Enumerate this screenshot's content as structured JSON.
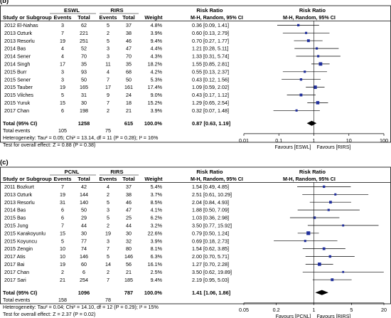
{
  "chart_data": [
    {
      "type": "forest",
      "panel_label": "(b)",
      "group_headers": [
        "ESWL",
        "RIRS"
      ],
      "columns": [
        "Study or Subgroup",
        "Events",
        "Total",
        "Events",
        "Total",
        "Weight",
        "Risk Ratio",
        "Risk Ratio"
      ],
      "ratio_subheaders": [
        "M-H, Random, 95% CI",
        "M-H, Random, 95% CI"
      ],
      "studies": [
        {
          "name": "2012 El-Nahas",
          "e1": "3",
          "t1": "62",
          "e2": "5",
          "t2": "37",
          "weight": "4.8%",
          "ci_text": "0.36 [0.09, 1.41]",
          "rr": 0.36,
          "lo": 0.09,
          "hi": 1.41
        },
        {
          "name": "2013 Ozturk",
          "e1": "7",
          "t1": "221",
          "e2": "2",
          "t2": "38",
          "weight": "3.9%",
          "ci_text": "0.60 [0.13, 2.79]",
          "rr": 0.6,
          "lo": 0.13,
          "hi": 2.79
        },
        {
          "name": "2013 Resorlu",
          "e1": "19",
          "t1": "251",
          "e2": "5",
          "t2": "46",
          "weight": "9.4%",
          "ci_text": "0.70 [0.27, 1.77]",
          "rr": 0.7,
          "lo": 0.27,
          "hi": 1.77
        },
        {
          "name": "2014 Bas",
          "e1": "4",
          "t1": "52",
          "e2": "3",
          "t2": "47",
          "weight": "4.4%",
          "ci_text": "1.21 [0.28, 5.11]",
          "rr": 1.21,
          "lo": 0.28,
          "hi": 5.11
        },
        {
          "name": "2014 Sener",
          "e1": "4",
          "t1": "70",
          "e2": "3",
          "t2": "70",
          "weight": "4.3%",
          "ci_text": "1.33 [0.31, 5.74]",
          "rr": 1.33,
          "lo": 0.31,
          "hi": 5.74
        },
        {
          "name": "2014 Singh",
          "e1": "17",
          "t1": "35",
          "e2": "11",
          "t2": "35",
          "weight": "18.2%",
          "ci_text": "1.55 [0.85, 2.81]",
          "rr": 1.55,
          "lo": 0.85,
          "hi": 2.81
        },
        {
          "name": "2015 Burr",
          "e1": "3",
          "t1": "93",
          "e2": "4",
          "t2": "68",
          "weight": "4.2%",
          "ci_text": "0.55 [0.13, 2.37]",
          "rr": 0.55,
          "lo": 0.13,
          "hi": 2.37
        },
        {
          "name": "2015 Sener",
          "e1": "3",
          "t1": "50",
          "e2": "7",
          "t2": "50",
          "weight": "5.3%",
          "ci_text": "0.43 [0.12, 1.56]",
          "rr": 0.43,
          "lo": 0.12,
          "hi": 1.56
        },
        {
          "name": "2015 Tauber",
          "e1": "19",
          "t1": "165",
          "e2": "17",
          "t2": "161",
          "weight": "17.4%",
          "ci_text": "1.09 [0.59, 2.02]",
          "rr": 1.09,
          "lo": 0.59,
          "hi": 2.02
        },
        {
          "name": "2015 Vilches",
          "e1": "5",
          "t1": "31",
          "e2": "9",
          "t2": "24",
          "weight": "9.0%",
          "ci_text": "0.43 [0.17, 1.12]",
          "rr": 0.43,
          "lo": 0.17,
          "hi": 1.12
        },
        {
          "name": "2015 Yuruk",
          "e1": "15",
          "t1": "30",
          "e2": "7",
          "t2": "18",
          "weight": "15.2%",
          "ci_text": "1.29 [0.65, 2.54]",
          "rr": 1.29,
          "lo": 0.65,
          "hi": 2.54
        },
        {
          "name": "2017 Chan",
          "e1": "6",
          "t1": "198",
          "e2": "2",
          "t2": "21",
          "weight": "3.9%",
          "ci_text": "0.32 [0.07, 1.48]",
          "rr": 0.32,
          "lo": 0.07,
          "hi": 1.48
        }
      ],
      "total": {
        "name": "Total (95% CI)",
        "t1": "1258",
        "t2": "615",
        "weight": "100.0%",
        "ci_text": "0.87 [0.63, 1.19]",
        "rr": 0.87,
        "lo": 0.63,
        "hi": 1.19
      },
      "total_events": {
        "label": "Total events",
        "e1": "105",
        "e2": "75"
      },
      "heterogeneity": "Heterogeneity: Tau² = 0.05; Chi² = 13.14, df = 11 (P = 0.28); I² = 16%",
      "overall_effect": "Test for overall effect: Z = 0.88 (P = 0.38)",
      "axis": {
        "scale": "log",
        "min": 0.01,
        "max": 100,
        "ticks": [
          0.01,
          0.1,
          1,
          10,
          100
        ],
        "tick_labels": [
          "0.01",
          "0.1",
          "1",
          "10",
          "100"
        ]
      },
      "favours": [
        "Favours [ESWL]",
        "Favours [RIRS]"
      ],
      "marker_color": "#1f2e9c"
    },
    {
      "type": "forest",
      "panel_label": "(c)",
      "group_headers": [
        "PCNL",
        "RIRS"
      ],
      "columns": [
        "Study or Subgroup",
        "Events",
        "Total",
        "Events",
        "Total",
        "Weight",
        "Risk Ratio",
        "Risk Ratio"
      ],
      "ratio_subheaders": [
        "M-H, Random, 95% CI",
        "M-H, Random, 95% CI"
      ],
      "studies": [
        {
          "name": "2011 Bozkurt",
          "e1": "7",
          "t1": "42",
          "e2": "4",
          "t2": "37",
          "weight": "5.4%",
          "ci_text": "1.54 [0.49, 4.85]",
          "rr": 1.54,
          "lo": 0.49,
          "hi": 4.85
        },
        {
          "name": "2013 Ozturk",
          "e1": "19",
          "t1": "144",
          "e2": "2",
          "t2": "38",
          "weight": "3.7%",
          "ci_text": "2.51 [0.61, 10.29]",
          "rr": 2.51,
          "lo": 0.61,
          "hi": 10.29
        },
        {
          "name": "2013 Resorlu",
          "e1": "31",
          "t1": "140",
          "e2": "5",
          "t2": "46",
          "weight": "8.5%",
          "ci_text": "2.04 [0.84, 4.93]",
          "rr": 2.04,
          "lo": 0.84,
          "hi": 4.93
        },
        {
          "name": "2014 Bas",
          "e1": "6",
          "t1": "50",
          "e2": "3",
          "t2": "47",
          "weight": "4.1%",
          "ci_text": "1.88 [0.50, 7.09]",
          "rr": 1.88,
          "lo": 0.5,
          "hi": 7.09
        },
        {
          "name": "2015 Bas",
          "e1": "6",
          "t1": "29",
          "e2": "5",
          "t2": "25",
          "weight": "6.2%",
          "ci_text": "1.03 [0.36, 2.98]",
          "rr": 1.03,
          "lo": 0.36,
          "hi": 2.98
        },
        {
          "name": "2015 Jung",
          "e1": "7",
          "t1": "44",
          "e2": "2",
          "t2": "44",
          "weight": "3.2%",
          "ci_text": "3.50 [0.77, 15.92]",
          "rr": 3.5,
          "lo": 0.77,
          "hi": 15.92
        },
        {
          "name": "2015 Karakoyunlu",
          "e1": "15",
          "t1": "30",
          "e2": "19",
          "t2": "30",
          "weight": "22.6%",
          "ci_text": "0.79 [0.50, 1.24]",
          "rr": 0.79,
          "lo": 0.5,
          "hi": 1.24
        },
        {
          "name": "2015 Koyuncu",
          "e1": "5",
          "t1": "77",
          "e2": "3",
          "t2": "32",
          "weight": "3.9%",
          "ci_text": "0.69 [0.18, 2.73]",
          "rr": 0.69,
          "lo": 0.18,
          "hi": 2.73
        },
        {
          "name": "2015 Zengin",
          "e1": "10",
          "t1": "74",
          "e2": "7",
          "t2": "80",
          "weight": "8.1%",
          "ci_text": "1.54 [0.62, 3.85]",
          "rr": 1.54,
          "lo": 0.62,
          "hi": 3.85
        },
        {
          "name": "2017 Atis",
          "e1": "10",
          "t1": "146",
          "e2": "5",
          "t2": "146",
          "weight": "6.3%",
          "ci_text": "2.00 [0.70, 5.71]",
          "rr": 2.0,
          "lo": 0.7,
          "hi": 5.71
        },
        {
          "name": "2017 Bai",
          "e1": "19",
          "t1": "60",
          "e2": "14",
          "t2": "56",
          "weight": "16.1%",
          "ci_text": "1.27 [0.70, 2.28]",
          "rr": 1.27,
          "lo": 0.7,
          "hi": 2.28
        },
        {
          "name": "2017 Chan",
          "e1": "2",
          "t1": "6",
          "e2": "2",
          "t2": "21",
          "weight": "2.5%",
          "ci_text": "3.50 [0.62, 19.89]",
          "rr": 3.5,
          "lo": 0.62,
          "hi": 19.89
        },
        {
          "name": "2017 Sari",
          "e1": "21",
          "t1": "254",
          "e2": "7",
          "t2": "185",
          "weight": "9.4%",
          "ci_text": "2.19 [0.95, 5.03]",
          "rr": 2.19,
          "lo": 0.95,
          "hi": 5.03
        }
      ],
      "total": {
        "name": "Total (95% CI)",
        "t1": "1096",
        "t2": "787",
        "weight": "100.0%",
        "ci_text": "1.41 [1.06, 1.86]",
        "rr": 1.41,
        "lo": 1.06,
        "hi": 1.86
      },
      "total_events": {
        "label": "Total events",
        "e1": "158",
        "e2": "78"
      },
      "heterogeneity": "Heterogeneity: Tau² = 0.04; Chi² = 14.10, df = 12 (P = 0.29); I² = 15%",
      "overall_effect": "Test for overall effect: Z = 2.37 (P = 0.02)",
      "axis": {
        "scale": "log",
        "min": 0.05,
        "max": 20,
        "ticks": [
          0.05,
          0.2,
          1,
          5,
          20
        ],
        "tick_labels": [
          "0.05",
          "0.2",
          "1",
          "5",
          "20"
        ]
      },
      "favours": [
        "Favours [PCNL]",
        "Favours [RIRS]"
      ],
      "marker_color": "#1f2e9c"
    }
  ]
}
